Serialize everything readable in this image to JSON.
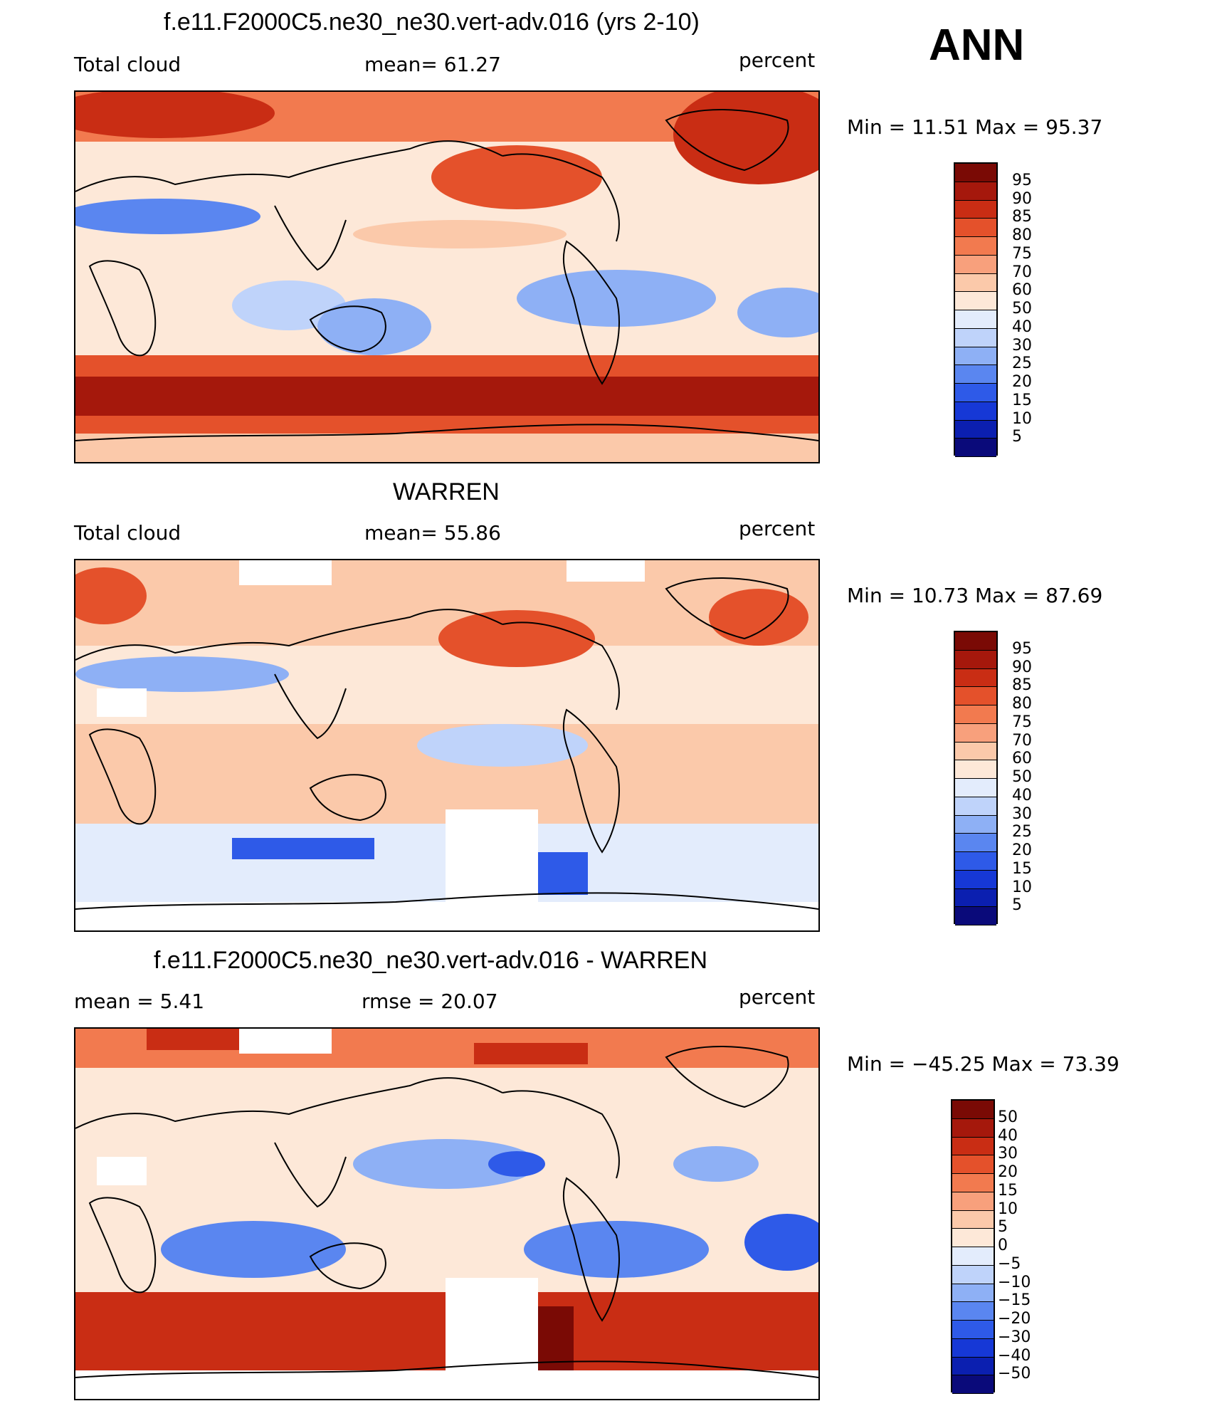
{
  "header": {
    "season": "ANN"
  },
  "colors": {
    "model_levels": [
      "#0a0a7a",
      "#0b1fb0",
      "#1638d6",
      "#2e5ae8",
      "#5a86f0",
      "#8eb0f5",
      "#bfd3fa",
      "#e3ecfc",
      "#fde8d8",
      "#fbc9aa",
      "#f8a07c",
      "#f27a4f",
      "#e4512b",
      "#c92d14",
      "#a5180c",
      "#7a0a05"
    ],
    "diff_levels": [
      "#0a0a7a",
      "#0b1fb0",
      "#1638d6",
      "#2e5ae8",
      "#5a86f0",
      "#8eb0f5",
      "#bfd3fa",
      "#e3ecfc",
      "#fde8d8",
      "#fbc9aa",
      "#f8a07c",
      "#f27a4f",
      "#e4512b",
      "#c92d14",
      "#a5180c",
      "#7a0a05"
    ]
  },
  "panels": [
    {
      "title": "f.e11.F2000C5.ne30_ne30.vert-adv.016 (yrs 2-10)",
      "left_label": "Total cloud",
      "center_label": "mean=   61.27",
      "right_label": "percent",
      "minmax": "Min  =     11.51  Max  =     95.37",
      "colorbar_labels": [
        "95",
        "90",
        "85",
        "80",
        "75",
        "70",
        "60",
        "50",
        "40",
        "30",
        "25",
        "20",
        "15",
        "10",
        "5"
      ]
    },
    {
      "title": "WARREN",
      "left_label": "Total cloud",
      "center_label": "mean=   55.86",
      "right_label": "percent",
      "minmax": "Min  =     10.73  Max  =     87.69",
      "colorbar_labels": [
        "95",
        "90",
        "85",
        "80",
        "75",
        "70",
        "60",
        "50",
        "40",
        "30",
        "25",
        "20",
        "15",
        "10",
        "5"
      ]
    },
    {
      "title": "f.e11.F2000C5.ne30_ne30.vert-adv.016 - WARREN",
      "left_label": "mean  =      5.41",
      "center_label": "rmse  =    20.07",
      "right_label": "percent",
      "minmax": "Min  =  −45.25  Max  =     73.39",
      "colorbar_labels": [
        "50",
        "40",
        "30",
        "20",
        "15",
        "10",
        "5",
        "0",
        "−5",
        "−10",
        "−15",
        "−20",
        "−30",
        "−40",
        "−50"
      ]
    }
  ]
}
